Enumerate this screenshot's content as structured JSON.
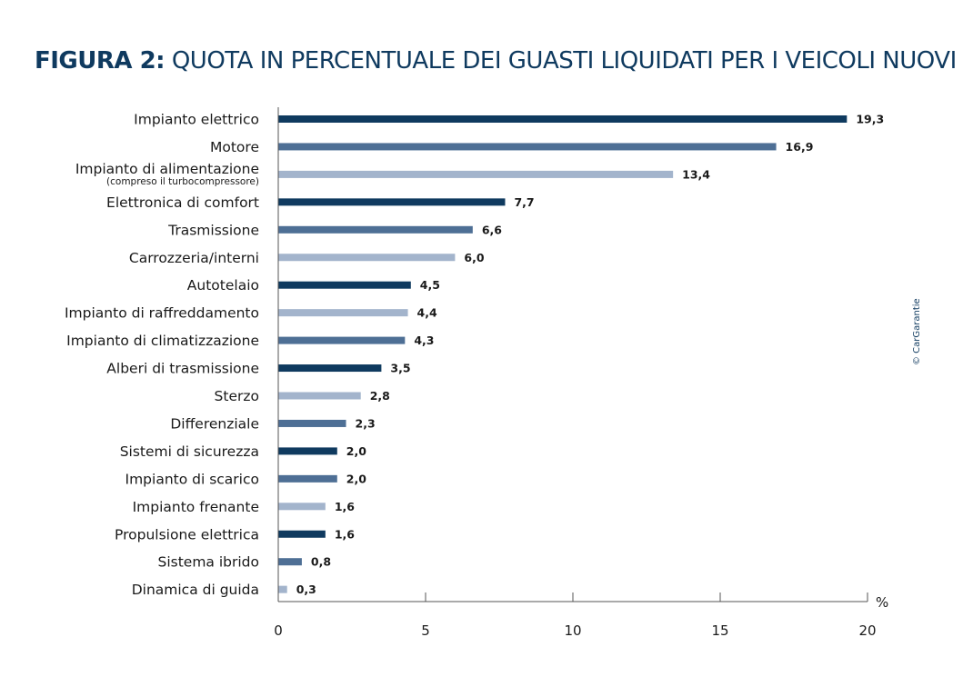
{
  "title_prefix": "FIGURA 2:",
  "title_text": "QUOTA IN PERCENTUALE DEI GUASTI LIQUIDATI PER I VEICOLI NUOVI",
  "credit": "© CarGarantie",
  "colors": {
    "dark": "#0f3a5f",
    "medium": "#4e6f95",
    "light": "#a3b4cc",
    "title": "#0f3a5f"
  },
  "chart_data": {
    "type": "bar",
    "orientation": "horizontal",
    "title": "FIGURA 2: QUOTA IN PERCENTUALE DEI GUASTI LIQUIDATI PER I VEICOLI NUOVI",
    "xlabel": "%",
    "xlim": [
      0,
      20
    ],
    "xticks": [
      0,
      5,
      10,
      15,
      20
    ],
    "categories": [
      "Impianto elettrico",
      "Motore",
      "Impianto di alimentazione",
      "Elettronica di comfort",
      "Trasmissione",
      "Carrozzeria/interni",
      "Autotelaio",
      "Impianto di raffreddamento",
      "Impianto di climatizzazione",
      "Alberi di trasmissione",
      "Sterzo",
      "Differenziale",
      "Sistemi di sicurezza",
      "Impianto di scarico",
      "Impianto frenante",
      "Propulsione elettrica",
      "Sistema ibrido",
      "Dinamica di guida"
    ],
    "sublabels": [
      "",
      "",
      "(compreso il turbocompressore)",
      "",
      "",
      "",
      "",
      "",
      "",
      "",
      "",
      "",
      "",
      "",
      "",
      "",
      "",
      ""
    ],
    "values": [
      19.3,
      16.9,
      13.4,
      7.7,
      6.6,
      6.0,
      4.5,
      4.4,
      4.3,
      3.5,
      2.8,
      2.3,
      2.0,
      2.0,
      1.6,
      1.6,
      0.8,
      0.3
    ],
    "value_labels": [
      "19,3",
      "16,9",
      "13,4",
      "7,7",
      "6,6",
      "6,0",
      "4,5",
      "4,4",
      "4,3",
      "3,5",
      "2,8",
      "2,3",
      "2,0",
      "2,0",
      "1,6",
      "1,6",
      "0,8",
      "0,3"
    ],
    "bar_colors": [
      "dark",
      "medium",
      "light",
      "dark",
      "medium",
      "light",
      "dark",
      "light",
      "medium",
      "dark",
      "light",
      "medium",
      "dark",
      "medium",
      "light",
      "dark",
      "medium",
      "light"
    ]
  }
}
